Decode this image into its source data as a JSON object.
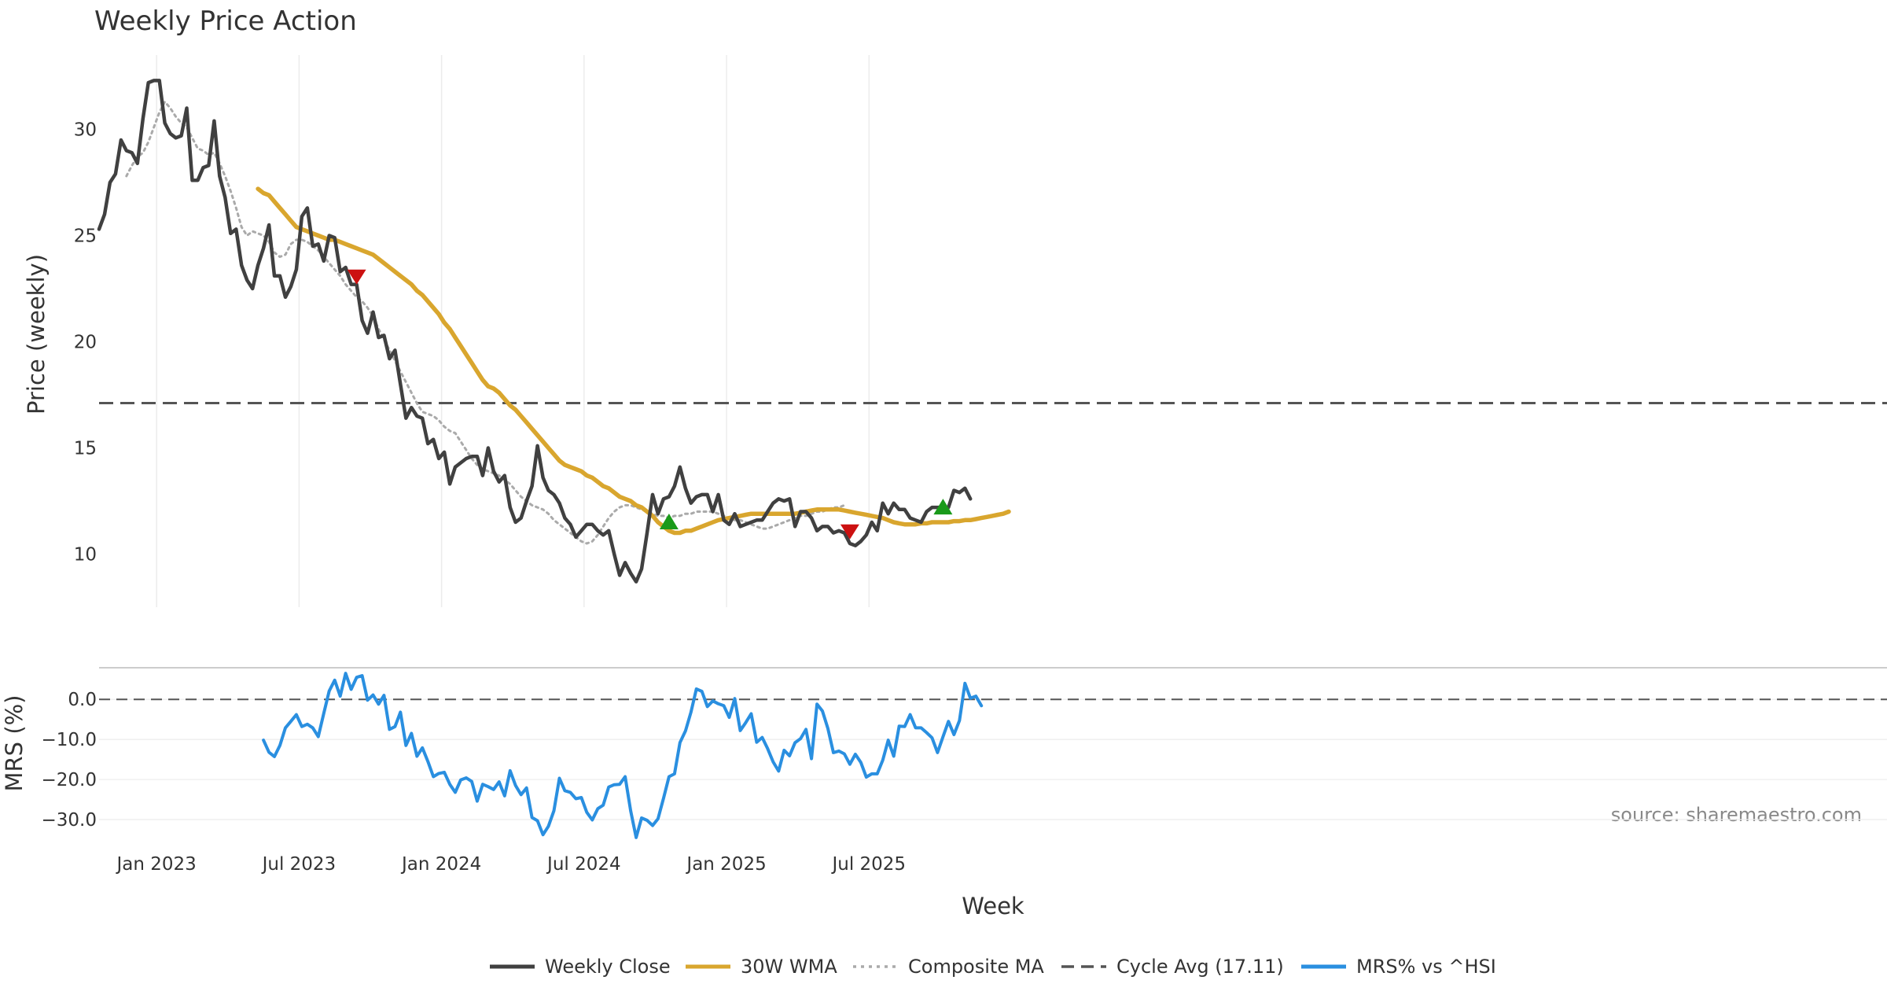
{
  "chart_data": {
    "type": "line",
    "title": "Weekly Price Action",
    "source": "source: sharemaestro.com",
    "xlabel": "Week",
    "x_ticks": [
      "Jan 2023",
      "Jul 2023",
      "Jan 2024",
      "Jul 2024",
      "Jan 2025",
      "Jul 2025"
    ],
    "price_panel": {
      "ylabel": "Price (weekly)",
      "ylim": [
        7.5,
        33.5
      ],
      "y_ticks": [
        "10",
        "15",
        "20",
        "25",
        "30"
      ],
      "cycle_avg": 17.11
    },
    "mrs_panel": {
      "ylabel": "MRS (%)",
      "ylim": [
        -35.5,
        7.5
      ],
      "y_ticks": [
        "0.0",
        "−10.0",
        "−20.0",
        "−30.0"
      ],
      "reference": 0
    },
    "series": [
      {
        "name": "Weekly Close",
        "color": "#404040",
        "style": "solid",
        "start_week": 0,
        "values": [
          25.3,
          26.0,
          27.5,
          27.9,
          29.5,
          29.0,
          28.9,
          28.4,
          30.5,
          32.2,
          32.3,
          32.3,
          30.3,
          29.8,
          29.6,
          29.7,
          31.0,
          27.6,
          27.6,
          28.2,
          28.3,
          30.4,
          27.8,
          26.8,
          25.1,
          25.3,
          23.6,
          22.9,
          22.5,
          23.6,
          24.4,
          25.5,
          23.1,
          23.1,
          22.1,
          22.6,
          23.4,
          25.9,
          26.3,
          24.5,
          24.6,
          23.8,
          25.0,
          24.9,
          23.3,
          23.5,
          22.7,
          22.7,
          21.0,
          20.4,
          21.4,
          20.2,
          20.3,
          19.2,
          19.6,
          18.0,
          16.4,
          16.9,
          16.5,
          16.4,
          15.2,
          15.4,
          14.5,
          14.8,
          13.3,
          14.1,
          14.3,
          14.5,
          14.6,
          14.6,
          13.7,
          15.0,
          13.9,
          13.4,
          13.7,
          12.2,
          11.5,
          11.7,
          12.5,
          13.2,
          15.1,
          13.6,
          13.0,
          12.8,
          12.4,
          11.7,
          11.4,
          10.8,
          11.1,
          11.4,
          11.4,
          11.1,
          10.9,
          11.1,
          10.0,
          9.0,
          9.6,
          9.1,
          8.7,
          9.3,
          11.0,
          12.8,
          11.9,
          12.6,
          12.7,
          13.2,
          14.1,
          13.1,
          12.4,
          12.7,
          12.8,
          12.8,
          12.0,
          12.8,
          11.6,
          11.4,
          11.9,
          11.3,
          11.4,
          11.5,
          11.6,
          11.6,
          12.0,
          12.4,
          12.6,
          12.5,
          12.6,
          11.3,
          12.0,
          12.0,
          11.7,
          11.1,
          11.3,
          11.3,
          11.0,
          11.1,
          11.0,
          10.5,
          10.4,
          10.6,
          10.9,
          11.5,
          11.1,
          12.4,
          11.9,
          12.4,
          12.1,
          12.1,
          11.7,
          11.6,
          11.5,
          12.0,
          12.2,
          12.2,
          12.2,
          12.2,
          13.0,
          12.9,
          13.1,
          12.6
        ]
      },
      {
        "name": "30W WMA",
        "color": "#d9a62e",
        "style": "solid",
        "start_week": 29,
        "values": [
          27.2,
          27.0,
          26.9,
          26.6,
          26.3,
          26.0,
          25.7,
          25.4,
          25.3,
          25.2,
          25.1,
          25.0,
          24.9,
          24.8,
          24.8,
          24.7,
          24.6,
          24.5,
          24.4,
          24.3,
          24.2,
          24.1,
          23.9,
          23.7,
          23.5,
          23.3,
          23.1,
          22.9,
          22.7,
          22.4,
          22.2,
          21.9,
          21.6,
          21.3,
          20.9,
          20.6,
          20.2,
          19.8,
          19.4,
          19.0,
          18.6,
          18.2,
          17.9,
          17.8,
          17.6,
          17.3,
          17.0,
          16.8,
          16.5,
          16.2,
          15.9,
          15.6,
          15.3,
          15.0,
          14.7,
          14.4,
          14.2,
          14.1,
          14.0,
          13.9,
          13.7,
          13.6,
          13.4,
          13.2,
          13.1,
          12.9,
          12.7,
          12.6,
          12.5,
          12.3,
          12.2,
          12.0,
          11.8,
          11.5,
          11.3,
          11.1,
          11.0,
          11.0,
          11.1,
          11.1,
          11.2,
          11.3,
          11.4,
          11.5,
          11.6,
          11.65,
          11.7,
          11.75,
          11.8,
          11.85,
          11.9,
          11.9,
          11.9,
          11.9,
          11.9,
          11.9,
          11.9,
          11.9,
          11.9,
          11.95,
          12.0,
          12.05,
          12.1,
          12.1,
          12.1,
          12.1,
          12.1,
          12.05,
          12.0,
          11.95,
          11.9,
          11.85,
          11.8,
          11.75,
          11.7,
          11.6,
          11.5,
          11.45,
          11.4,
          11.4,
          11.4,
          11.45,
          11.45,
          11.5,
          11.5,
          11.5,
          11.5,
          11.55,
          11.55,
          11.6,
          11.6,
          11.65,
          11.7,
          11.75,
          11.8,
          11.85,
          11.9,
          12.0
        ]
      },
      {
        "name": "Composite MA",
        "color": "#aaaaaa",
        "style": "dotted",
        "start_week": 5,
        "values": [
          27.8,
          28.3,
          28.7,
          28.9,
          29.4,
          30.1,
          30.8,
          31.3,
          31.0,
          30.6,
          30.3,
          30.1,
          29.6,
          29.1,
          29.0,
          28.8,
          28.9,
          28.4,
          27.8,
          27.1,
          26.3,
          25.4,
          25.0,
          25.2,
          25.1,
          25.0,
          24.7,
          24.2,
          24.0,
          24.1,
          24.6,
          24.8,
          24.8,
          24.7,
          24.5,
          24.3,
          24.0,
          23.7,
          23.4,
          23.1,
          22.7,
          22.4,
          22.1,
          21.9,
          21.6,
          21.2,
          20.6,
          20.1,
          19.6,
          19.1,
          18.6,
          18.1,
          17.6,
          17.1,
          16.7,
          16.6,
          16.5,
          16.3,
          16.0,
          15.8,
          15.7,
          15.3,
          14.9,
          14.5,
          14.2,
          14.0,
          13.9,
          13.8,
          13.7,
          13.5,
          13.3,
          13.0,
          12.7,
          12.5,
          12.3,
          12.2,
          12.1,
          11.9,
          11.6,
          11.4,
          11.2,
          11.0,
          10.8,
          10.6,
          10.5,
          10.6,
          10.9,
          11.3,
          11.7,
          12.0,
          12.2,
          12.3,
          12.3,
          12.2,
          12.1,
          12.0,
          11.9,
          11.8,
          11.8,
          11.7,
          11.8,
          11.8,
          11.9,
          11.9,
          12.0,
          12.0,
          12.0,
          12.0,
          11.9,
          11.8,
          11.7,
          11.6,
          11.6,
          11.5,
          11.4,
          11.3,
          11.2,
          11.2,
          11.3,
          11.4,
          11.5,
          11.6,
          11.7,
          11.8,
          11.8,
          11.9,
          12.0,
          12.0,
          12.1,
          12.2,
          12.2,
          12.3
        ]
      },
      {
        "name": "MRS% vs ^HSI",
        "color": "#2a8fe0",
        "style": "solid",
        "panel": "mrs",
        "start_week": 30,
        "values": [
          -10.2,
          -13.2,
          -14.3,
          -11.5,
          -7.1,
          -5.5,
          -3.8,
          -6.8,
          -6.2,
          -7.1,
          -9.3,
          -3.5,
          2.1,
          4.8,
          0.8,
          6.5,
          2.5,
          5.5,
          5.9,
          -0.2,
          1.1,
          -1.2,
          1.0,
          -7.5,
          -6.8,
          -3.2,
          -11.5,
          -8.5,
          -14.2,
          -12.1,
          -15.5,
          -19.3,
          -18.5,
          -18.2,
          -21.2,
          -23.2,
          -20.1,
          -19.6,
          -20.5,
          -25.4,
          -21.2,
          -21.8,
          -22.5,
          -20.6,
          -24.1,
          -17.8,
          -21.5,
          -23.8,
          -22.1,
          -29.5,
          -30.3,
          -33.8,
          -31.7,
          -27.8,
          -19.7,
          -22.8,
          -23.2,
          -24.8,
          -24.5,
          -28.2,
          -30.1,
          -27.3,
          -26.4,
          -21.9,
          -21.3,
          -21.2,
          -19.3,
          -27.8,
          -34.5,
          -29.6,
          -30.2,
          -31.5,
          -29.8,
          -24.7,
          -19.3,
          -18.6,
          -10.8,
          -7.9,
          -3.2,
          2.6,
          2.0,
          -1.8,
          -0.4,
          -1.1,
          -1.6,
          -4.5,
          0.2,
          -7.8,
          -5.8,
          -3.6,
          -10.7,
          -9.5,
          -12.3,
          -15.6,
          -17.9,
          -12.7,
          -14.1,
          -10.8,
          -9.8,
          -7.5,
          -14.8,
          -1.2,
          -2.9,
          -7.3,
          -13.3,
          -12.9,
          -13.6,
          -16.2,
          -13.7,
          -15.7,
          -19.4,
          -18.6,
          -18.6,
          -15.2,
          -10.2,
          -14.2,
          -6.7,
          -6.8,
          -3.8,
          -7.1,
          -7.1,
          -8.3,
          -9.6,
          -13.3,
          -9.3,
          -5.5,
          -8.8,
          -5.3,
          4.0,
          0.3,
          0.8,
          -1.6
        ]
      }
    ],
    "signals": [
      {
        "type": "sell",
        "week": 47,
        "value": 23.1,
        "color": "#cc1111"
      },
      {
        "type": "buy",
        "week": 104,
        "value": 11.5,
        "color": "#1a9a1a"
      },
      {
        "type": "sell",
        "week": 137,
        "value": 11.1,
        "color": "#cc1111"
      },
      {
        "type": "buy",
        "week": 154,
        "value": 12.2,
        "color": "#1a9a1a"
      }
    ],
    "legend": [
      {
        "label": "Weekly Close",
        "color": "#404040",
        "style": "solid"
      },
      {
        "label": "30W WMA",
        "color": "#d9a62e",
        "style": "solid"
      },
      {
        "label": "Composite MA",
        "color": "#aaaaaa",
        "style": "dotted"
      },
      {
        "label": "Cycle Avg (17.11)",
        "color": "#555555",
        "style": "dashed"
      },
      {
        "label": "MRS% vs ^HSI",
        "color": "#2a8fe0",
        "style": "solid"
      }
    ]
  }
}
